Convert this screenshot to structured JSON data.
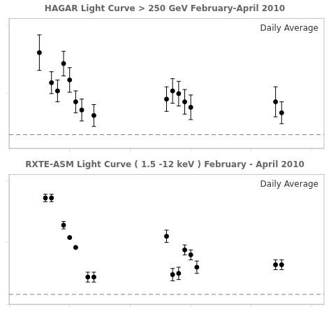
{
  "chart_data": [
    {
      "type": "scatter",
      "title": "HAGAR Light Curve > 250 GeV February-April 2010",
      "annotation": "Daily Average",
      "x": [
        5,
        7,
        8,
        9,
        10,
        11,
        12,
        14,
        26,
        27,
        28,
        29,
        30,
        44,
        45
      ],
      "values": [
        0.8,
        0.58,
        0.52,
        0.72,
        0.6,
        0.44,
        0.38,
        0.34,
        0.46,
        0.52,
        0.5,
        0.44,
        0.4,
        0.44,
        0.36
      ],
      "yerr": [
        0.13,
        0.08,
        0.08,
        0.09,
        0.09,
        0.08,
        0.08,
        0.08,
        0.09,
        0.09,
        0.09,
        0.09,
        0.09,
        0.11,
        0.08
      ],
      "hline": {
        "value": 0.2,
        "color": "gray",
        "line_style": "dashed"
      },
      "color": "black",
      "marker": "circle",
      "xlim": [
        0,
        52
      ],
      "ylim": [
        0.1,
        1.05
      ],
      "xticks": [
        0,
        10,
        20,
        30,
        40,
        50
      ],
      "yticks": [
        0.5,
        1.0
      ],
      "grid": false,
      "tick_labels": false
    },
    {
      "type": "scatter",
      "title": "RXTE-ASM Light Curve ( 1.5 -12 keV ) February - April 2010",
      "annotation": "Daily Average",
      "x": [
        6,
        7,
        9,
        10,
        11,
        13,
        14,
        26,
        27,
        28,
        29,
        30,
        31,
        44,
        45
      ],
      "values": [
        0.86,
        0.86,
        0.64,
        0.54,
        0.46,
        0.22,
        0.22,
        0.55,
        0.24,
        0.25,
        0.44,
        0.4,
        0.3,
        0.32,
        0.32
      ],
      "yerr": [
        0.03,
        0.03,
        0.03,
        0.0,
        0.0,
        0.04,
        0.04,
        0.05,
        0.05,
        0.05,
        0.04,
        0.04,
        0.05,
        0.04,
        0.04
      ],
      "hline": {
        "value": 0.08,
        "color": "gray",
        "line_style": "dashed"
      },
      "color": "black",
      "marker": "circle",
      "xlim": [
        0,
        52
      ],
      "ylim": [
        0.0,
        1.05
      ],
      "xticks": [
        0,
        10,
        20,
        30,
        40,
        50
      ],
      "yticks": [
        0,
        0.5,
        1.0
      ],
      "grid": false,
      "tick_labels": false
    }
  ]
}
